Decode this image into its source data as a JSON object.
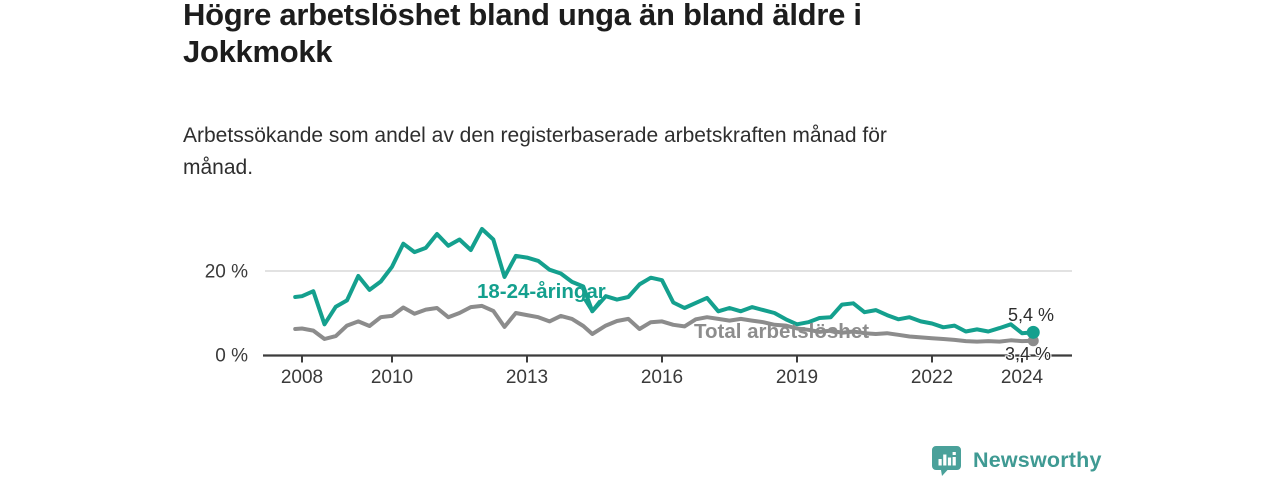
{
  "header": {
    "title_lines": [
      "Högre arbetslöshet bland unga än bland äldre i",
      "Jokkmokk"
    ],
    "subtitle_lines": [
      "Arbetssökande som andel av den registerbaserade arbetskraften månad för",
      "månad."
    ]
  },
  "chart_data": {
    "type": "line",
    "title": "Högre arbetslöshet bland unga än bland äldre i Jokkmokk",
    "subtitle": "Arbetssökande som andel av den registerbaserade arbetskraften månad för månad.",
    "xlabel": "",
    "ylabel": "",
    "x_unit": "year",
    "ylim": [
      0,
      32
    ],
    "xlim": [
      2007.8,
      2025.1
    ],
    "grid": "horizontal gridline at 20% only",
    "legend": "inline labels next to lines",
    "x": [
      2007.85,
      2008,
      2008.25,
      2008.5,
      2008.75,
      2009,
      2009.25,
      2009.5,
      2009.75,
      2010,
      2010.25,
      2010.5,
      2010.75,
      2011,
      2011.25,
      2011.5,
      2011.75,
      2012,
      2012.25,
      2012.5,
      2012.75,
      2013,
      2013.25,
      2013.5,
      2013.75,
      2014,
      2014.25,
      2014.45,
      2014.75,
      2015,
      2015.25,
      2015.5,
      2015.75,
      2016,
      2016.25,
      2016.5,
      2016.75,
      2017,
      2017.25,
      2017.5,
      2017.75,
      2018,
      2018.25,
      2018.5,
      2018.75,
      2019,
      2019.25,
      2019.5,
      2019.75,
      2020,
      2020.25,
      2020.5,
      2020.75,
      2021,
      2021.25,
      2021.5,
      2021.75,
      2022,
      2022.25,
      2022.5,
      2022.75,
      2023,
      2023.25,
      2023.5,
      2023.75,
      2024,
      2024.25
    ],
    "series": [
      {
        "name": "18-24-åringar",
        "color": "#14a08e",
        "end_label": "5,4 %",
        "end_value": 5.4,
        "values": [
          13.8,
          14.0,
          15.2,
          7.3,
          11.5,
          13.0,
          18.8,
          15.5,
          17.5,
          21.0,
          26.5,
          24.5,
          25.5,
          28.8,
          26.0,
          27.5,
          25.0,
          30.0,
          27.5,
          18.6,
          23.6,
          23.2,
          22.4,
          20.3,
          19.4,
          17.4,
          16.3,
          10.4,
          14.0,
          13.2,
          13.8,
          16.8,
          18.4,
          17.8,
          12.5,
          11.2,
          12.4,
          13.6,
          10.4,
          11.2,
          10.4,
          11.4,
          10.7,
          10.0,
          8.5,
          7.3,
          7.8,
          8.8,
          9.0,
          12.0,
          12.3,
          10.2,
          10.7,
          9.5,
          8.5,
          9.0,
          8.0,
          7.5,
          6.6,
          7.0,
          5.6,
          6.1,
          5.6,
          6.4,
          7.3,
          5.2,
          5.4
        ]
      },
      {
        "name": "Total arbetslöshet",
        "color": "#8c8c8c",
        "end_label": "3,4 %",
        "end_value": 3.4,
        "values": [
          6.2,
          6.3,
          5.8,
          3.8,
          4.5,
          7.0,
          8.0,
          6.9,
          9.0,
          9.3,
          11.3,
          9.8,
          10.8,
          11.2,
          9.0,
          10.0,
          11.4,
          11.7,
          10.5,
          6.7,
          10.0,
          9.5,
          9.0,
          8.0,
          9.3,
          8.6,
          6.9,
          5.0,
          7.0,
          8.1,
          8.6,
          6.2,
          7.8,
          8.0,
          7.2,
          6.8,
          8.5,
          9.0,
          8.6,
          8.2,
          8.6,
          8.2,
          7.8,
          7.2,
          7.0,
          6.3,
          6.0,
          5.5,
          5.8,
          5.3,
          5.6,
          5.2,
          5.0,
          5.2,
          4.8,
          4.4,
          4.2,
          4.0,
          3.8,
          3.6,
          3.3,
          3.2,
          3.3,
          3.2,
          3.5,
          3.3,
          3.4
        ]
      }
    ],
    "xticks": [
      {
        "value": 2008,
        "label": "2008"
      },
      {
        "value": 2010,
        "label": "2010"
      },
      {
        "value": 2013,
        "label": "2013"
      },
      {
        "value": 2016,
        "label": "2016"
      },
      {
        "value": 2019,
        "label": "2019"
      },
      {
        "value": 2022,
        "label": "2022"
      },
      {
        "value": 2024,
        "label": "2024"
      }
    ],
    "yticks": [
      {
        "value": 0,
        "label": "0 %"
      },
      {
        "value": 20,
        "label": "20 %"
      }
    ],
    "annotation_arrow": {
      "points_to_year": 2014.45,
      "points_to_value": 10.4
    },
    "colors": {
      "accent_teal": "#14a08e",
      "series_gray": "#8c8c8c",
      "grid": "#d9d9d9",
      "axis": "#3c3c3c",
      "tick_text": "#3a3a3a",
      "value_text": "#2d2d2d"
    }
  },
  "logo": {
    "text": "Newsworthy",
    "color": "#3f9a93",
    "icon": "newsworthy-bars-speech-bubble-icon"
  }
}
